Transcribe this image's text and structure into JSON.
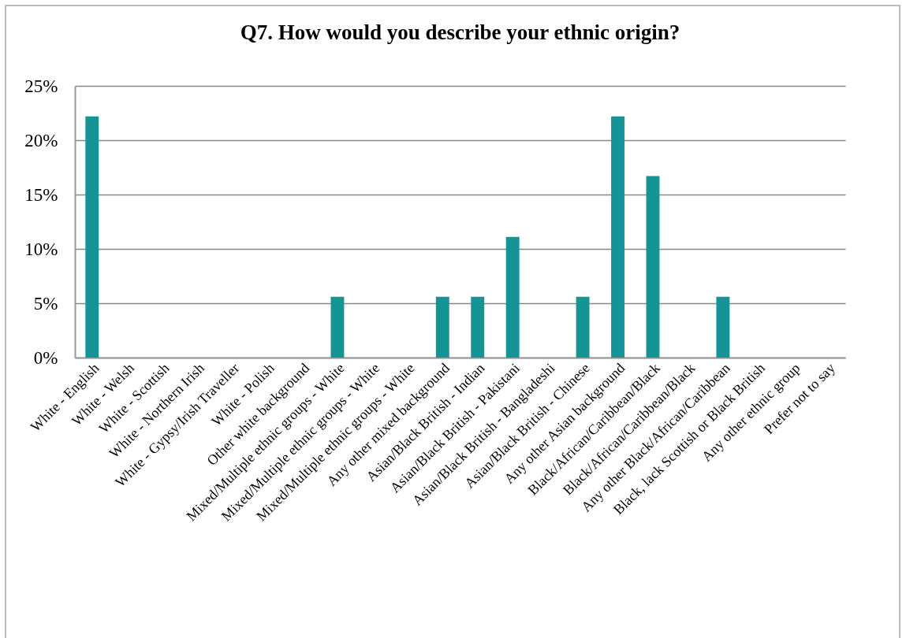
{
  "chart_data": {
    "type": "bar",
    "title": "Q7. How would you describe your ethnic origin?",
    "categories": [
      "White - English",
      "White - Welsh",
      "White - Scottish",
      "White - Northern Irish",
      "White - Gypsy/Irish Traveller",
      "White - Polish",
      "Other white background",
      "Mixed/Multiple ethnic groups - White",
      "Mixed/Multiple ethnic groups - White",
      "Mixed/Multiple ethnic groups - White",
      "Any other mixed background",
      "Asian/Black British - Indian",
      "Asian/Black British - Pakistani",
      "Asian/Black British - Bangladeshi",
      "Asian/Black British - Chinese",
      "Any other Asian background",
      "Black/African/Caribbean/Black",
      "Black/African/Caribbean/Black",
      "Any other Black/African/Caribbean",
      "Black, lack Scottish or Black British",
      "Any other ethnic group",
      "Prefer not to say"
    ],
    "values": [
      22.2,
      0,
      0,
      0,
      0,
      0,
      0,
      5.6,
      0,
      0,
      5.6,
      5.6,
      11.1,
      0,
      5.6,
      22.2,
      16.7,
      0,
      5.6,
      0,
      0,
      0
    ],
    "color": "#149494",
    "ylim": [
      0,
      25
    ],
    "yticks": [
      {
        "value": 0,
        "label": "0%"
      },
      {
        "value": 5,
        "label": "5%"
      },
      {
        "value": 10,
        "label": "10%"
      },
      {
        "value": 15,
        "label": "15%"
      },
      {
        "value": 20,
        "label": "20%"
      },
      {
        "value": 25,
        "label": "25%"
      }
    ],
    "grid": "y"
  }
}
